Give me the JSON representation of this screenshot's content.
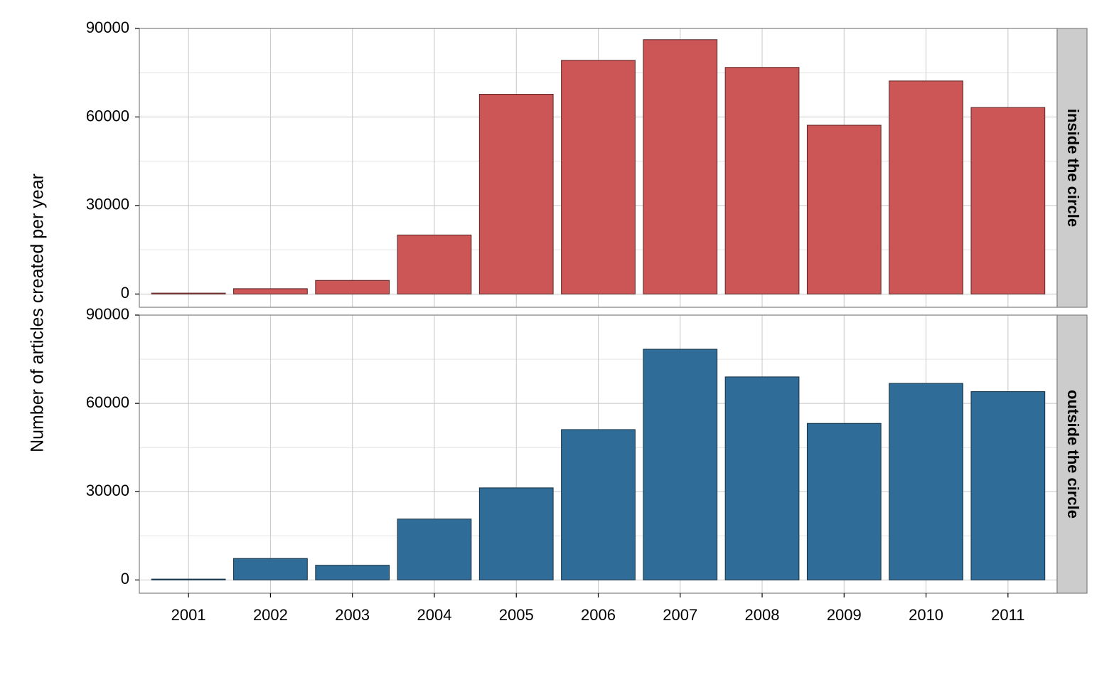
{
  "chart_data": {
    "type": "bar",
    "ylabel": "Number of articles created per year",
    "xlabel": "",
    "categories": [
      "2001",
      "2002",
      "2003",
      "2004",
      "2005",
      "2006",
      "2007",
      "2008",
      "2009",
      "2010",
      "2011"
    ],
    "ylim": [
      -4500,
      90000
    ],
    "yticks": [
      0,
      30000,
      60000,
      90000
    ],
    "grid": true,
    "legend": "none",
    "panels": [
      {
        "name": "inside the circle",
        "color": "#CC5555",
        "values": [
          300,
          1800,
          4600,
          20000,
          67700,
          79200,
          86200,
          76800,
          57200,
          72200,
          63200
        ]
      },
      {
        "name": "outside the circle",
        "color": "#2F6C98",
        "values": [
          300,
          7300,
          5000,
          20700,
          31300,
          51100,
          78400,
          69000,
          53200,
          66800,
          64000
        ]
      }
    ]
  }
}
